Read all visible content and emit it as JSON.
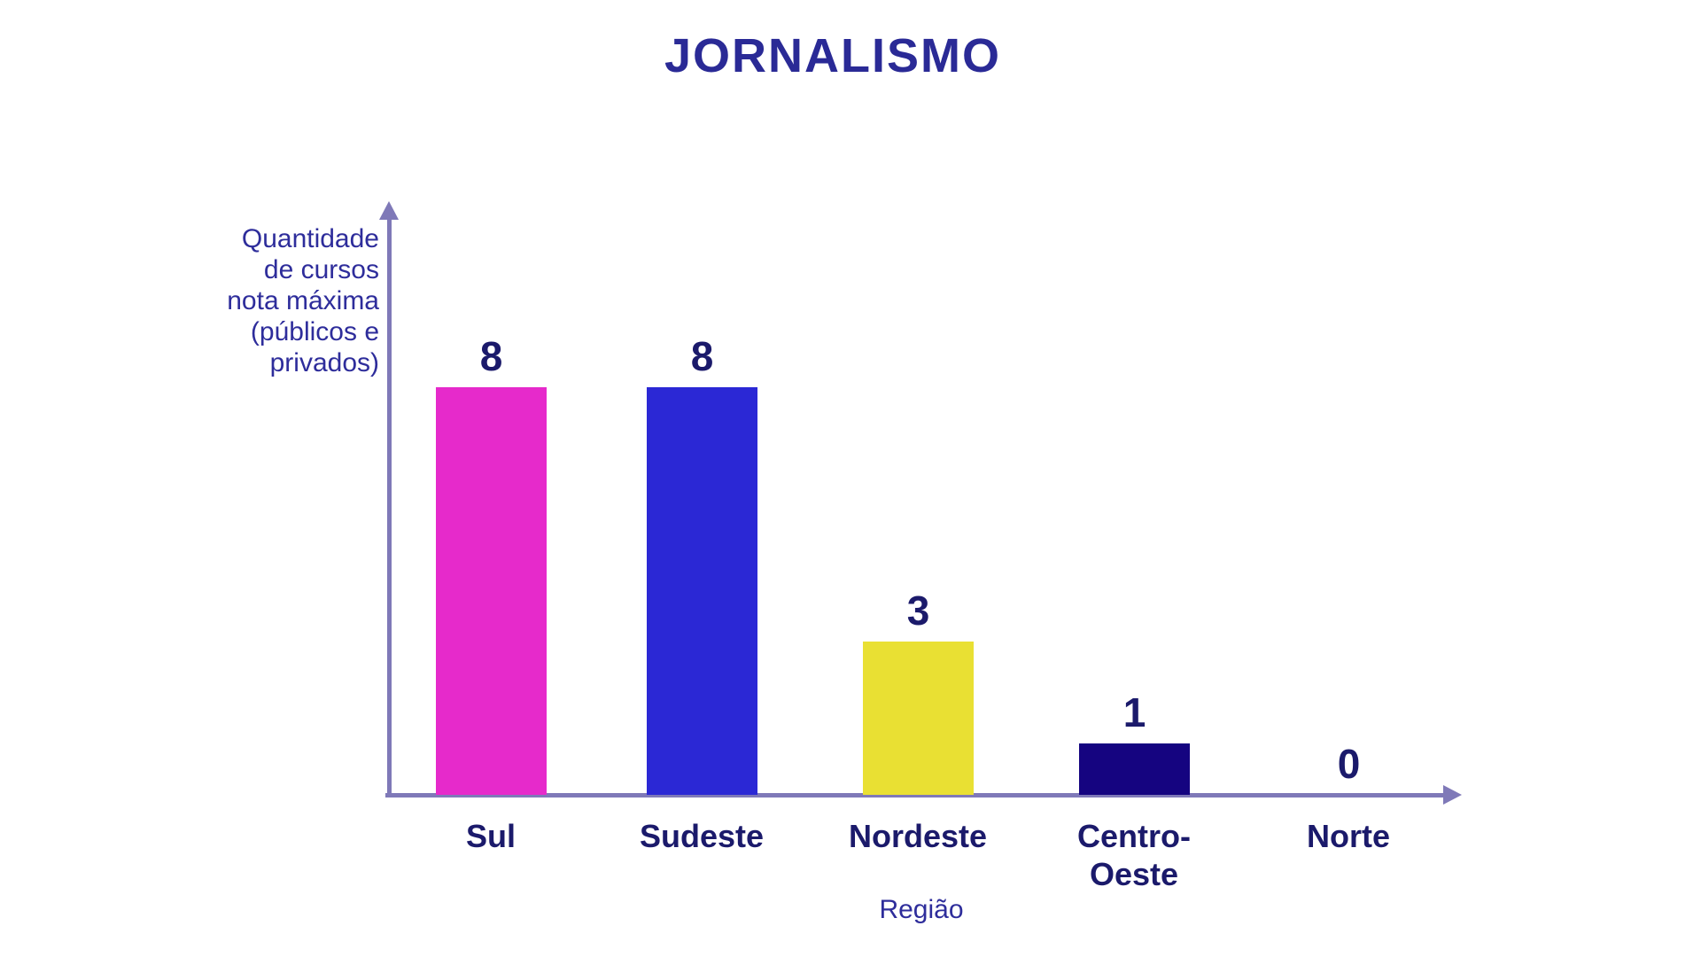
{
  "chart_data": {
    "type": "bar",
    "title": "JORNALISMO",
    "categories": [
      "Sul",
      "Sudeste",
      "Nordeste",
      "Centro-Oeste",
      "Norte"
    ],
    "values": [
      8,
      8,
      3,
      1,
      0
    ],
    "xlabel": "Região",
    "ylabel": "Quantidade de cursos nota máxima (públicos e privados)",
    "ylabel_lines": [
      "Quantidade",
      "de cursos",
      "nota máxima",
      "(públicos e",
      "privados)"
    ],
    "ylim": [
      0,
      9
    ],
    "grid": false,
    "legend": "none",
    "value_labels_shown": true,
    "bar_colors": [
      "#e62acb",
      "#2b28d5",
      "#e9e033",
      "#150480",
      null
    ],
    "colors": {
      "title_text": "#2a2a96",
      "axis_label_text": "#2e2d9b",
      "tick_label_text": "#1b1a6b",
      "axis_line": "#7f79b8",
      "background": "#ffffff"
    }
  }
}
